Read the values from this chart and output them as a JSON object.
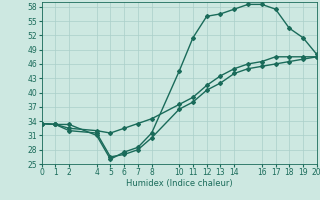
{
  "title": "",
  "xlabel": "Humidex (Indice chaleur)",
  "bg_color": "#cde8e1",
  "line_color": "#1a6b5a",
  "grid_color": "#aacfca",
  "xlim": [
    0,
    20
  ],
  "ylim": [
    25,
    59
  ],
  "xticks": [
    0,
    1,
    2,
    4,
    5,
    6,
    7,
    8,
    10,
    11,
    12,
    13,
    14,
    16,
    17,
    18,
    19,
    20
  ],
  "yticks": [
    25,
    28,
    31,
    34,
    37,
    40,
    43,
    46,
    49,
    52,
    55,
    58
  ],
  "line1_x": [
    0,
    1,
    2,
    4,
    5,
    6,
    7,
    8,
    10,
    11,
    12,
    13,
    14,
    15,
    16,
    17,
    18,
    19,
    20
  ],
  "line1_y": [
    33.5,
    33.3,
    33.3,
    31.0,
    26.0,
    27.5,
    28.5,
    31.5,
    44.5,
    51.5,
    56.0,
    56.5,
    57.5,
    58.5,
    58.5,
    57.5,
    53.5,
    51.5,
    48.0
  ],
  "line2_x": [
    0,
    1,
    2,
    4,
    5,
    6,
    7,
    8,
    10,
    11,
    12,
    13,
    14,
    15,
    16,
    17,
    18,
    19,
    20
  ],
  "line2_y": [
    33.5,
    33.3,
    32.5,
    32.0,
    31.5,
    32.5,
    33.5,
    34.5,
    37.5,
    39.0,
    41.5,
    43.5,
    45.0,
    46.0,
    46.5,
    47.5,
    47.5,
    47.5,
    47.5
  ],
  "line3_x": [
    0,
    1,
    2,
    4,
    5,
    6,
    7,
    8,
    10,
    11,
    12,
    13,
    14,
    15,
    16,
    17,
    18,
    19,
    20
  ],
  "line3_y": [
    33.5,
    33.3,
    32.0,
    31.5,
    26.5,
    27.0,
    28.0,
    30.5,
    36.5,
    38.0,
    40.5,
    42.0,
    44.0,
    45.0,
    45.5,
    46.0,
    46.5,
    47.0,
    47.5
  ],
  "marker": "D",
  "marker_size": 2,
  "linewidth": 1.0
}
